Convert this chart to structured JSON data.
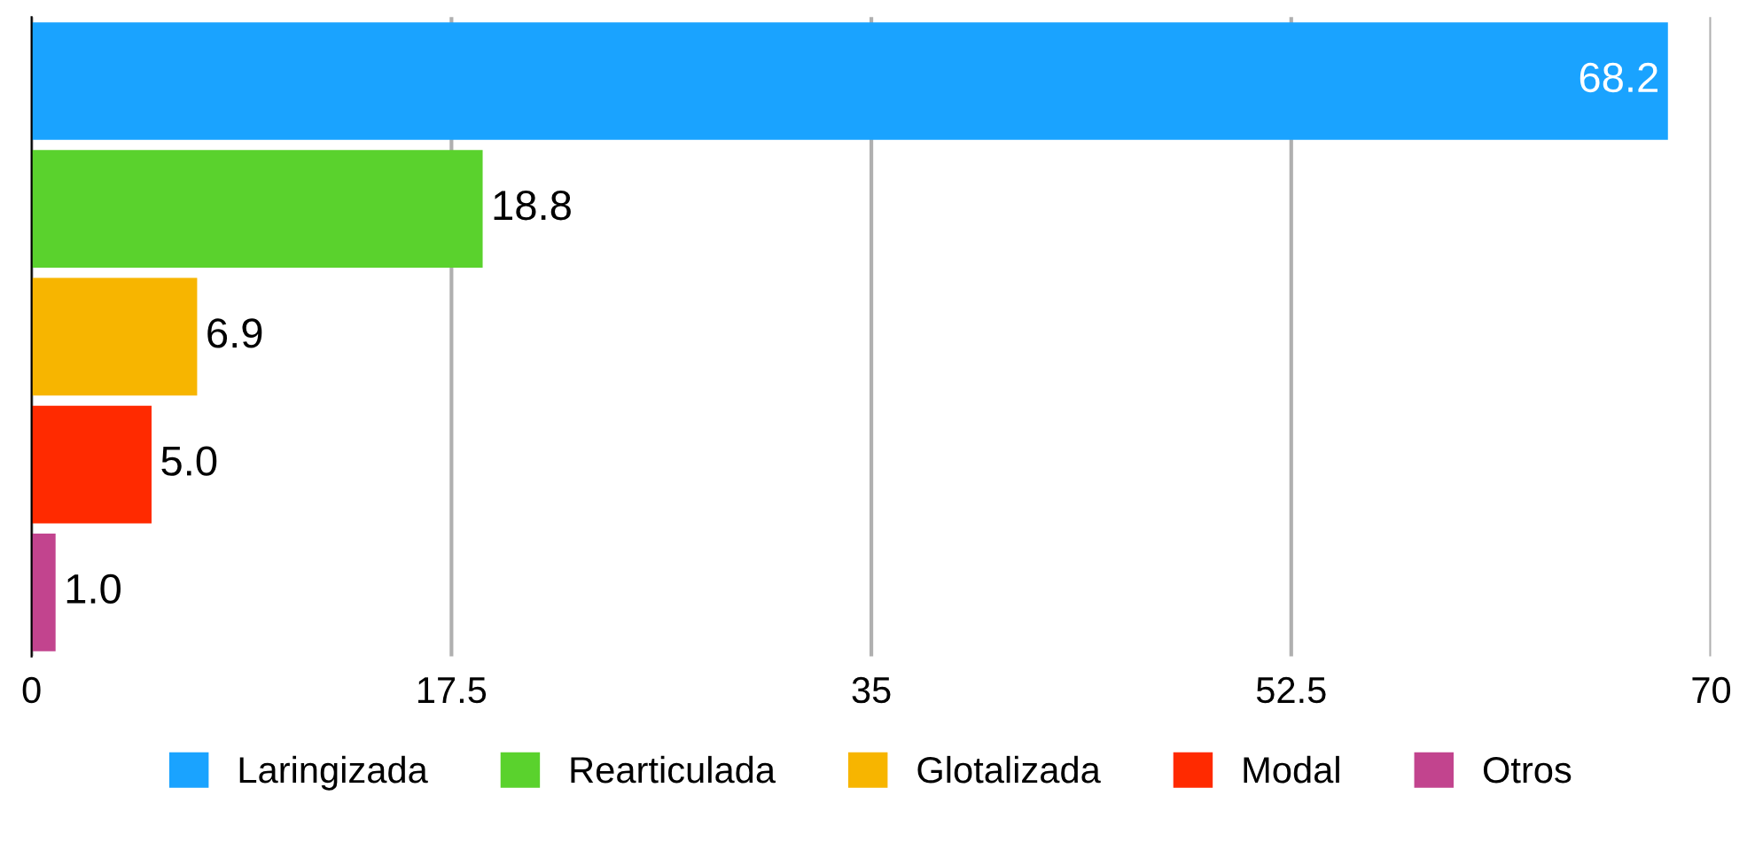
{
  "chart_data": {
    "type": "bar",
    "orientation": "horizontal",
    "stacked": true,
    "categories": [
      null,
      null,
      null,
      null,
      null
    ],
    "series": [
      {
        "name": "Laringizada",
        "color": "#1aa3ff",
        "values": [
          68.2,
          null,
          null,
          null,
          null
        ],
        "value_labels": [
          "68.2",
          null,
          null,
          null,
          null
        ]
      },
      {
        "name": "Rearticulada",
        "color": "#5ad22d",
        "values": [
          null,
          18.8,
          null,
          null,
          null
        ],
        "value_labels": [
          null,
          "18.8",
          null,
          null,
          null
        ]
      },
      {
        "name": "Glotalizada",
        "color": "#f7b500",
        "values": [
          null,
          null,
          6.9,
          null,
          null
        ],
        "value_labels": [
          null,
          null,
          "6.9",
          null,
          null
        ]
      },
      {
        "name": "Modal",
        "color": "#ff2a00",
        "values": [
          null,
          null,
          null,
          5.0,
          null
        ],
        "value_labels": [
          null,
          null,
          null,
          "5.0",
          null
        ]
      },
      {
        "name": "Otros",
        "color": "#c2448e",
        "values": [
          null,
          null,
          null,
          null,
          1.0
        ],
        "value_labels": [
          null,
          null,
          null,
          null,
          "1.0"
        ]
      }
    ],
    "xlim": [
      0,
      70
    ],
    "xticks": [
      0,
      17.5,
      35,
      52.5,
      70
    ],
    "grid": "x",
    "legend": "bottom"
  }
}
